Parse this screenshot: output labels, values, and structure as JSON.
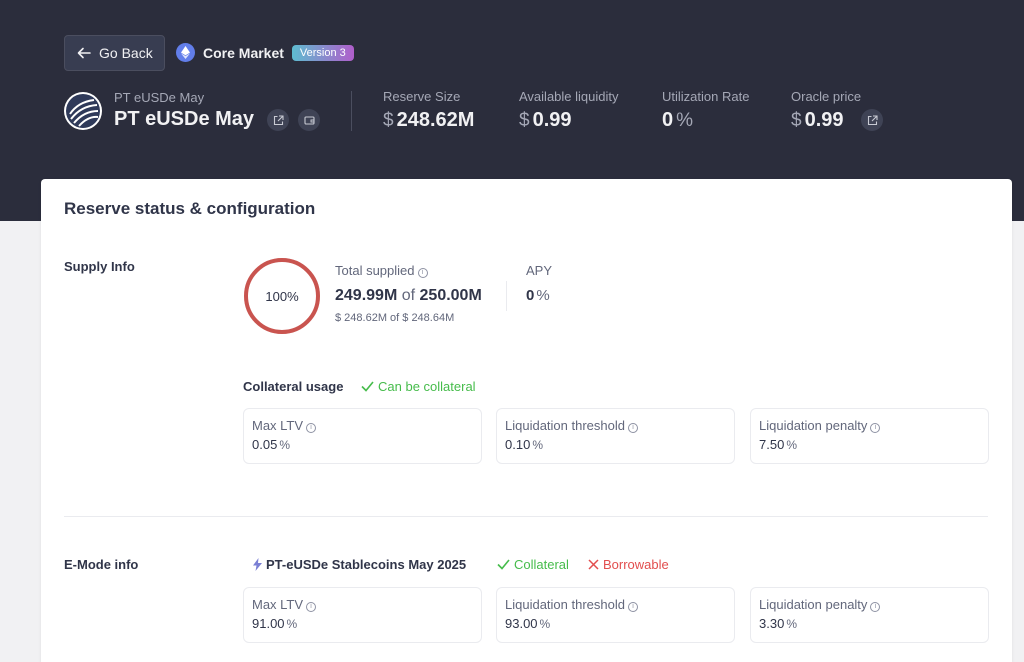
{
  "header": {
    "back_label": "Go Back",
    "market_name": "Core Market",
    "version": "Version 3",
    "asset_subtitle": "PT eUSDe May",
    "asset_title": "PT eUSDe May",
    "stats": [
      {
        "label": "Reserve Size",
        "symbol": "$",
        "value": "248.62M"
      },
      {
        "label": "Available liquidity",
        "symbol": "$",
        "value": "0.99"
      },
      {
        "label": "Utilization Rate",
        "value": "0",
        "suffix": "%"
      },
      {
        "label": "Oracle price",
        "symbol": "$",
        "value": "0.99"
      }
    ]
  },
  "card": {
    "title": "Reserve status & configuration",
    "supply": {
      "label": "Supply Info",
      "ring_percent": "100%",
      "ring_fraction": 1.0,
      "total_supplied_label": "Total supplied",
      "total_supplied_main": "249.99M",
      "of_word": "of",
      "total_supplied_cap": "250.00M",
      "total_supplied_usd": "$ 248.62M of $ 248.64M",
      "apy_label": "APY",
      "apy_value": "0",
      "apy_suffix": "%"
    },
    "collateral": {
      "label": "Collateral usage",
      "status": "Can be collateral",
      "boxes": [
        {
          "label": "Max LTV",
          "value": "0.05",
          "suffix": "%"
        },
        {
          "label": "Liquidation threshold",
          "value": "0.10",
          "suffix": "%"
        },
        {
          "label": "Liquidation penalty",
          "value": "7.50",
          "suffix": "%"
        }
      ]
    },
    "emode": {
      "label": "E-Mode info",
      "category": "PT-eUSDe Stablecoins May 2025",
      "collateral_flag": "Collateral",
      "borrowable_flag": "Borrowable",
      "boxes": [
        {
          "label": "Max LTV",
          "value": "91.00",
          "suffix": "%"
        },
        {
          "label": "Liquidation threshold",
          "value": "93.00",
          "suffix": "%"
        },
        {
          "label": "Liquidation penalty",
          "value": "3.30",
          "suffix": "%"
        }
      ]
    }
  },
  "colors": {
    "header_bg": "#2b2d3c",
    "ring": "#c9544f",
    "success": "#46bc4b",
    "error": "#e24e4e"
  }
}
